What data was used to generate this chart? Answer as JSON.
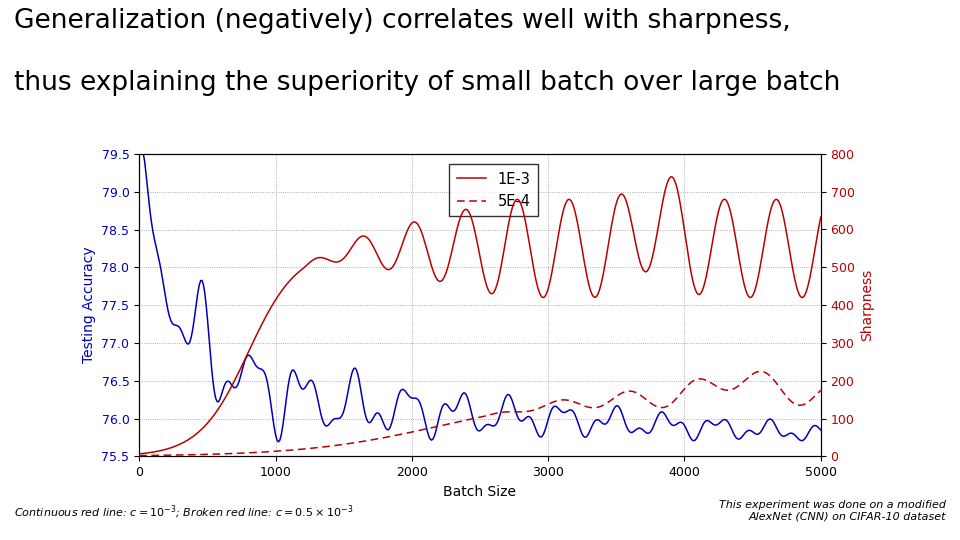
{
  "title_line1": "Generalization (negatively) correlates well with sharpness,",
  "title_line2": "thus explaining the superiority of small batch over large batch",
  "xlabel": "Batch Size",
  "ylabel_left": "Testing Accuracy",
  "ylabel_right": "Sharpness",
  "legend_entries": [
    "1E-3",
    "5E-4"
  ],
  "xlim": [
    0,
    5000
  ],
  "ylim_left": [
    75.5,
    79.5
  ],
  "ylim_right": [
    0,
    800
  ],
  "xticks": [
    0,
    1000,
    2000,
    3000,
    4000,
    5000
  ],
  "yticks_left": [
    75.5,
    76.0,
    76.5,
    77.0,
    77.5,
    78.0,
    78.5,
    79.0,
    79.5
  ],
  "yticks_right": [
    0,
    100,
    200,
    300,
    400,
    500,
    600,
    700,
    800
  ],
  "color_blue": "#0000bb",
  "color_red": "#bb0000",
  "footnote_left": "Continuous red line: $c = 10^{-3}$; Broken red line: $c = 0.5 \\times 10^{-3}$",
  "footnote_right": "This experiment was done on a modified\nAlexNet (CNN) on CIFAR-10 dataset",
  "title_fontsize": 19,
  "axis_label_fontsize": 10,
  "tick_fontsize": 9,
  "footnote_fontsize": 8,
  "grid_color": "#999999",
  "bg_color": "#ffffff"
}
